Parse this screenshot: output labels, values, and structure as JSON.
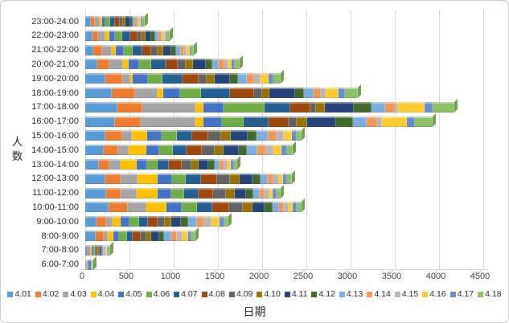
{
  "chart_data": {
    "type": "bar",
    "stacked": true,
    "orientation": "horizontal",
    "effect": "3d-bevel",
    "title": "",
    "xlabel": "日期",
    "ylabel": "人数",
    "xlim": [
      0,
      4500
    ],
    "x_ticks": [
      "0",
      "500",
      "1000",
      "1500",
      "2000",
      "2500",
      "3000",
      "3500",
      "4000",
      "4500"
    ],
    "grid": true,
    "legend_position": "bottom",
    "categories_top_to_bottom": [
      "23:00-24:00",
      "22:00-23:00",
      "21:00-22:00",
      "20:00-21:00",
      "19:00-20:00",
      "18:00-19:00",
      "17:00-18:00",
      "16:00-17:00",
      "15:00-16:00",
      "14:00-15:00",
      "13:00-14:00",
      "12:00-13:00",
      "11:00-12:00",
      "10:00-11:00",
      "9:00-10:00",
      "8:00-9:00",
      "7:00-8:00",
      "6:00-7:00"
    ],
    "category_totals_approx": [
      650,
      940,
      1210,
      1730,
      2210,
      3100,
      4200,
      3950,
      2480,
      2370,
      1740,
      2330,
      2200,
      2470,
      1620,
      1270,
      280,
      95
    ],
    "series": [
      {
        "name": "4.01",
        "color": "#5B9BD5",
        "values": [
          60,
          80,
          90,
          140,
          230,
          300,
          360,
          340,
          230,
          210,
          150,
          230,
          240,
          260,
          130,
          120,
          25,
          10
        ]
      },
      {
        "name": "4.02",
        "color": "#ED7D31",
        "values": [
          50,
          70,
          100,
          130,
          190,
          260,
          290,
          290,
          190,
          160,
          120,
          170,
          160,
          220,
          110,
          85,
          20,
          8
        ]
      },
      {
        "name": "4.03",
        "color": "#A5A5A5",
        "values": [
          50,
          80,
          110,
          160,
          90,
          260,
          600,
          620,
          110,
          120,
          130,
          190,
          180,
          210,
          70,
          50,
          15,
          6
        ]
      },
      {
        "name": "4.04",
        "color": "#FFC000",
        "values": [
          30,
          40,
          50,
          60,
          30,
          60,
          90,
          90,
          170,
          200,
          180,
          230,
          240,
          230,
          90,
          60,
          15,
          5
        ]
      },
      {
        "name": "4.05",
        "color": "#4472C4",
        "values": [
          40,
          70,
          90,
          120,
          170,
          190,
          220,
          210,
          160,
          150,
          120,
          160,
          150,
          170,
          100,
          70,
          15,
          5
        ]
      },
      {
        "name": "4.06",
        "color": "#70AD47",
        "values": [
          50,
          80,
          100,
          140,
          160,
          240,
          470,
          240,
          180,
          150,
          120,
          160,
          150,
          170,
          110,
          85,
          15,
          5
        ]
      },
      {
        "name": "4.07",
        "color": "#255E91",
        "values": [
          60,
          90,
          110,
          160,
          230,
          330,
          290,
          280,
          170,
          160,
          130,
          170,
          160,
          180,
          95,
          70,
          18,
          5
        ]
      },
      {
        "name": "4.08",
        "color": "#9E480E",
        "values": [
          50,
          80,
          100,
          140,
          180,
          270,
          230,
          230,
          180,
          170,
          140,
          180,
          170,
          190,
          110,
          90,
          15,
          5
        ]
      },
      {
        "name": "4.09",
        "color": "#636363",
        "values": [
          35,
          50,
          70,
          90,
          90,
          90,
          60,
          90,
          150,
          140,
          110,
          150,
          140,
          150,
          85,
          60,
          12,
          4
        ]
      },
      {
        "name": "4.10",
        "color": "#997300",
        "values": [
          30,
          40,
          60,
          80,
          90,
          80,
          100,
          120,
          110,
          100,
          80,
          110,
          100,
          110,
          75,
          55,
          12,
          4
        ]
      },
      {
        "name": "4.11",
        "color": "#264478",
        "values": [
          50,
          70,
          90,
          140,
          180,
          290,
          330,
          330,
          190,
          180,
          110,
          140,
          130,
          140,
          110,
          90,
          18,
          5
        ]
      },
      {
        "name": "4.12",
        "color": "#43682B",
        "values": [
          30,
          40,
          60,
          80,
          90,
          100,
          200,
          190,
          100,
          90,
          70,
          90,
          80,
          90,
          80,
          60,
          12,
          4
        ]
      },
      {
        "name": "4.13",
        "color": "#7CAFDD",
        "values": [
          30,
          40,
          50,
          70,
          100,
          110,
          150,
          150,
          120,
          120,
          60,
          80,
          70,
          70,
          95,
          75,
          15,
          5
        ]
      },
      {
        "name": "4.14",
        "color": "#F1975A",
        "values": [
          25,
          30,
          40,
          60,
          80,
          80,
          120,
          120,
          100,
          100,
          50,
          70,
          60,
          60,
          90,
          70,
          15,
          4
        ]
      },
      {
        "name": "4.15",
        "color": "#B7B7B7",
        "values": [
          20,
          25,
          30,
          50,
          70,
          60,
          30,
          60,
          90,
          80,
          40,
          60,
          50,
          50,
          80,
          60,
          12,
          4
        ]
      },
      {
        "name": "4.16",
        "color": "#FFCD33",
        "values": [
          20,
          25,
          30,
          40,
          90,
          140,
          300,
          280,
          90,
          90,
          40,
          50,
          40,
          50,
          90,
          65,
          15,
          4
        ]
      },
      {
        "name": "4.17",
        "color": "#698ED0",
        "values": [
          15,
          20,
          20,
          30,
          60,
          80,
          90,
          90,
          50,
          60,
          30,
          40,
          40,
          40,
          50,
          40,
          10,
          3
        ]
      },
      {
        "name": "4.18",
        "color": "#8CC168",
        "values": [
          25,
          30,
          30,
          60,
          80,
          140,
          240,
          200,
          60,
          70,
          40,
          60,
          50,
          60,
          50,
          45,
          21,
          4
        ]
      }
    ]
  }
}
